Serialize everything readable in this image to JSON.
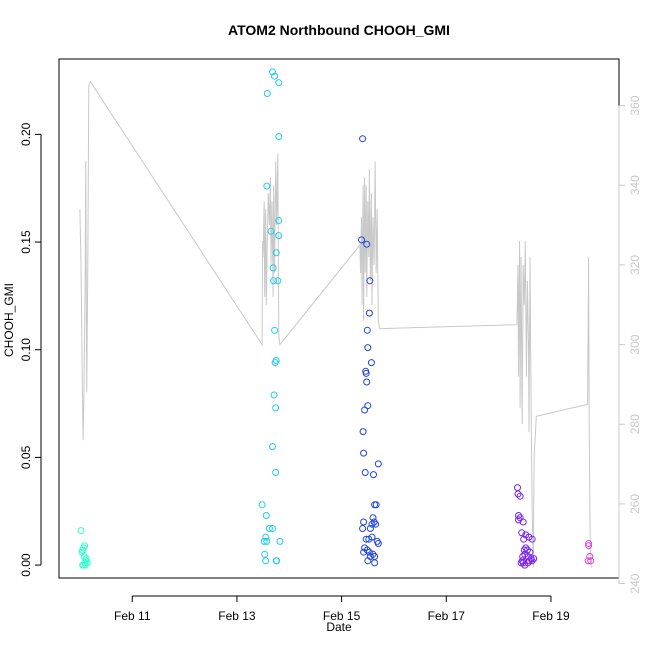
{
  "chart_data": {
    "type": "scatter",
    "title": "ATOM2 Northbound CHOOH_GMI",
    "xlabel": "Date",
    "ylabel": "CHOOH_GMI",
    "x_ticks": [
      "Feb 11",
      "Feb 13",
      "Feb 15",
      "Feb 17",
      "Feb 19"
    ],
    "x_tick_values": [
      11,
      13,
      15,
      17,
      19
    ],
    "xlim": [
      9.6,
      20.3
    ],
    "ylim": [
      -0.006,
      0.235
    ],
    "y_ticks": [
      "0.00",
      "0.05",
      "0.10",
      "0.15",
      "0.20"
    ],
    "y_tick_values": [
      0,
      0.05,
      0.1,
      0.15,
      0.2
    ],
    "y2lim": [
      241.4,
      371.7
    ],
    "y2_ticks": [
      "240",
      "260",
      "280",
      "300",
      "320",
      "340",
      "360"
    ],
    "y2_tick_values": [
      240,
      260,
      280,
      300,
      320,
      340,
      360
    ],
    "grid": false,
    "legend": "none",
    "series": [
      {
        "color": "#33ffcc",
        "marker": "open-circle",
        "points": [
          [
            10.02,
            0.016
          ],
          [
            10.05,
            0.007
          ],
          [
            10.08,
            0.004
          ],
          [
            10.05,
            0.0
          ],
          [
            10.1,
            0.001
          ],
          [
            10.12,
            0.003
          ],
          [
            10.09,
            0.009
          ],
          [
            10.07,
            0.008
          ],
          [
            10.04,
            0.006
          ],
          [
            10.1,
            0.0
          ],
          [
            10.14,
            0.001
          ],
          [
            10.11,
            0.002
          ],
          [
            10.06,
            0.0
          ]
        ]
      },
      {
        "color": "#22ccee",
        "marker": "open-circle",
        "points": [
          [
            13.68,
            0.229
          ],
          [
            13.72,
            0.227
          ],
          [
            13.58,
            0.219
          ],
          [
            13.8,
            0.224
          ],
          [
            13.8,
            0.199
          ],
          [
            13.57,
            0.176
          ],
          [
            13.8,
            0.16
          ],
          [
            13.65,
            0.155
          ],
          [
            13.8,
            0.153
          ],
          [
            13.75,
            0.145
          ],
          [
            13.69,
            0.138
          ],
          [
            13.7,
            0.132
          ],
          [
            13.78,
            0.132
          ],
          [
            13.72,
            0.109
          ],
          [
            13.75,
            0.095
          ],
          [
            13.73,
            0.094
          ],
          [
            13.71,
            0.079
          ],
          [
            13.74,
            0.073
          ],
          [
            13.68,
            0.055
          ],
          [
            13.74,
            0.043
          ],
          [
            13.48,
            0.028
          ],
          [
            13.56,
            0.023
          ],
          [
            13.62,
            0.017
          ],
          [
            13.68,
            0.017
          ],
          [
            13.55,
            0.013
          ],
          [
            13.52,
            0.011
          ],
          [
            13.57,
            0.011
          ],
          [
            13.82,
            0.011
          ],
          [
            13.53,
            0.005
          ],
          [
            13.55,
            0.002
          ],
          [
            13.75,
            0.002
          ],
          [
            13.76,
            0.002
          ]
        ]
      },
      {
        "color": "#2244dd",
        "marker": "open-circle",
        "points": [
          [
            15.4,
            0.198
          ],
          [
            15.38,
            0.151
          ],
          [
            15.48,
            0.149
          ],
          [
            15.54,
            0.132
          ],
          [
            15.53,
            0.117
          ],
          [
            15.49,
            0.109
          ],
          [
            15.5,
            0.101
          ],
          [
            15.57,
            0.094
          ],
          [
            15.46,
            0.09
          ],
          [
            15.47,
            0.089
          ],
          [
            15.48,
            0.085
          ],
          [
            15.5,
            0.074
          ],
          [
            15.44,
            0.072
          ],
          [
            15.41,
            0.062
          ],
          [
            15.42,
            0.052
          ],
          [
            15.45,
            0.043
          ],
          [
            15.61,
            0.042
          ],
          [
            15.7,
            0.047
          ],
          [
            15.66,
            0.028
          ],
          [
            15.63,
            0.028
          ],
          [
            15.6,
            0.022
          ],
          [
            15.42,
            0.02
          ],
          [
            15.62,
            0.02
          ],
          [
            15.58,
            0.019
          ],
          [
            15.65,
            0.019
          ],
          [
            15.4,
            0.017
          ],
          [
            15.55,
            0.017
          ],
          [
            15.47,
            0.012
          ],
          [
            15.52,
            0.012
          ],
          [
            15.58,
            0.013
          ],
          [
            15.68,
            0.011
          ],
          [
            15.7,
            0.01
          ],
          [
            15.44,
            0.008
          ],
          [
            15.49,
            0.007
          ],
          [
            15.53,
            0.006
          ],
          [
            15.6,
            0.005
          ],
          [
            15.42,
            0.006
          ],
          [
            15.63,
            0.004
          ],
          [
            15.55,
            0.004
          ],
          [
            15.5,
            0.002
          ],
          [
            15.63,
            0.001
          ]
        ]
      },
      {
        "color": "#7722ee",
        "marker": "open-circle",
        "points": [
          [
            18.36,
            0.036
          ],
          [
            18.37,
            0.033
          ],
          [
            18.41,
            0.032
          ],
          [
            18.38,
            0.023
          ],
          [
            18.41,
            0.022
          ],
          [
            18.47,
            0.02
          ],
          [
            18.38,
            0.021
          ],
          [
            18.44,
            0.015
          ],
          [
            18.52,
            0.014
          ],
          [
            18.58,
            0.013
          ],
          [
            18.64,
            0.012
          ],
          [
            18.48,
            0.012
          ],
          [
            18.52,
            0.008
          ],
          [
            18.49,
            0.007
          ],
          [
            18.55,
            0.007
          ],
          [
            18.6,
            0.006
          ],
          [
            18.5,
            0.005
          ],
          [
            18.46,
            0.004
          ],
          [
            18.56,
            0.004
          ],
          [
            18.62,
            0.003
          ],
          [
            18.67,
            0.003
          ],
          [
            18.43,
            0.001
          ],
          [
            18.47,
            0.001
          ],
          [
            18.5,
            0.0
          ],
          [
            18.56,
            0.001
          ],
          [
            18.59,
            0.002
          ],
          [
            18.64,
            0.002
          ],
          [
            18.45,
            0.002
          ]
        ]
      },
      {
        "color": "#dd44dd",
        "marker": "open-circle",
        "points": [
          [
            19.72,
            0.01
          ],
          [
            19.72,
            0.009
          ],
          [
            19.74,
            0.004
          ],
          [
            19.71,
            0.002
          ],
          [
            19.76,
            0.002
          ]
        ]
      }
    ],
    "line_series": {
      "color": "#c8c8c8",
      "axis": "right",
      "points": [
        [
          10.0,
          334
        ],
        [
          10.02,
          320
        ],
        [
          10.04,
          298
        ],
        [
          10.06,
          276
        ],
        [
          10.08,
          290
        ],
        [
          10.1,
          318
        ],
        [
          10.11,
          346
        ],
        [
          10.13,
          288
        ],
        [
          10.15,
          320
        ],
        [
          10.17,
          365
        ],
        [
          10.2,
          366
        ],
        [
          13.48,
          300
        ],
        [
          13.49,
          326
        ],
        [
          13.5,
          322
        ],
        [
          13.52,
          336
        ],
        [
          13.53,
          312
        ],
        [
          13.55,
          334
        ],
        [
          13.56,
          310
        ],
        [
          13.58,
          326
        ],
        [
          13.6,
          338
        ],
        [
          13.62,
          330
        ],
        [
          13.64,
          342
        ],
        [
          13.65,
          320
        ],
        [
          13.67,
          336
        ],
        [
          13.69,
          312
        ],
        [
          13.7,
          340
        ],
        [
          13.72,
          318
        ],
        [
          13.74,
          346
        ],
        [
          13.76,
          330
        ],
        [
          13.78,
          348
        ],
        [
          13.8,
          302
        ],
        [
          13.82,
          300
        ],
        [
          15.35,
          325
        ],
        [
          15.36,
          318
        ],
        [
          15.38,
          332
        ],
        [
          15.39,
          310
        ],
        [
          15.41,
          340
        ],
        [
          15.42,
          306
        ],
        [
          15.44,
          342
        ],
        [
          15.45,
          318
        ],
        [
          15.47,
          340
        ],
        [
          15.48,
          312
        ],
        [
          15.5,
          336
        ],
        [
          15.52,
          322
        ],
        [
          15.53,
          344
        ],
        [
          15.55,
          316
        ],
        [
          15.57,
          338
        ],
        [
          15.58,
          310
        ],
        [
          15.6,
          332
        ],
        [
          15.62,
          320
        ],
        [
          15.64,
          346
        ],
        [
          15.66,
          318
        ],
        [
          15.68,
          334
        ],
        [
          15.7,
          306
        ],
        [
          15.73,
          304
        ],
        [
          18.35,
          305
        ],
        [
          18.37,
          320
        ],
        [
          18.38,
          292
        ],
        [
          18.4,
          326
        ],
        [
          18.41,
          284
        ],
        [
          18.43,
          322
        ],
        [
          18.45,
          280
        ],
        [
          18.47,
          320
        ],
        [
          18.49,
          310
        ],
        [
          18.51,
          326
        ],
        [
          18.53,
          292
        ],
        [
          18.55,
          316
        ],
        [
          18.57,
          300
        ],
        [
          18.58,
          278
        ],
        [
          18.6,
          322
        ],
        [
          18.62,
          284
        ],
        [
          18.64,
          260
        ],
        [
          18.66,
          244
        ],
        [
          18.68,
          272
        ],
        [
          18.72,
          282
        ],
        [
          19.7,
          285
        ],
        [
          19.72,
          322
        ],
        [
          19.73,
          280
        ],
        [
          19.75,
          250
        ],
        [
          19.77,
          244
        ]
      ]
    }
  }
}
